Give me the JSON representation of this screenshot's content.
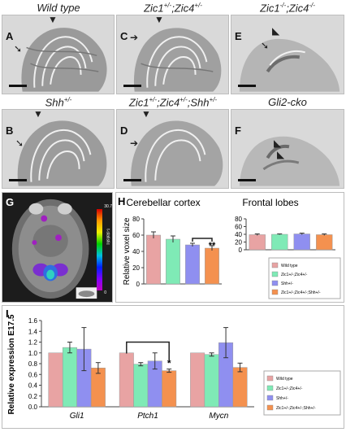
{
  "panels": {
    "A": {
      "letter": "A",
      "title": "Wild type"
    },
    "B": {
      "letter": "B",
      "title_html": "Shh<sup>+/-</sup>",
      "title": "Shh+/-"
    },
    "C": {
      "letter": "C",
      "title": "Zic1+/-;Zic4+/-",
      "title_html": "Zic1<sup>+/-</sup>;Zic4<sup>+/-</sup>"
    },
    "D": {
      "letter": "D",
      "title": "Zic1+/-;Zic4+/-;Shh+/-",
      "title_html": "Zic1<sup>+/-</sup>;Zic4<sup>+/-</sup>;Shh<sup>+/-</sup>"
    },
    "E": {
      "letter": "E",
      "title": "Zic1-/-;Zic4-/-",
      "title_html": "Zic1<sup>-/-</sup>;Zic4<sup>-/-</sup>"
    },
    "F": {
      "letter": "F",
      "title": "Gli2-cko"
    },
    "G": {
      "letter": "G",
      "colorbar_top": "30.7",
      "colorbar_bottom": "0",
      "colorbar_label": "t-statistic"
    }
  },
  "chart_H": {
    "letter": "H",
    "ylabel": "Relative voxel size",
    "panels": [
      "Cerebellar cortex",
      "Frontal lobes"
    ],
    "ylim": [
      0,
      80
    ],
    "yticks": [
      0,
      20,
      40,
      60,
      80
    ],
    "legend": [
      "Wild type",
      "Zic1+/-;Zic4+/-",
      "Shh+/-",
      "Zic1+/-;Zic4+/-;Shh+/-"
    ],
    "significance": "**"
  },
  "chart_I": {
    "letter": "I",
    "ylabel": "Relative expression E17.5",
    "genes": [
      "Gli1",
      "Ptch1",
      "Mycn"
    ],
    "yticks": [
      "0.0",
      "0.2",
      "0.4",
      "0.6",
      "0.8",
      "1.0",
      "1.2",
      "1.4",
      "1.6"
    ],
    "legend": [
      "Wild type",
      "Zic1+/-;Zic4+/-",
      "Shh+/-",
      "Zic1+/-;Zic4+/-;Shh+/-"
    ],
    "significance": "*"
  },
  "chart_data": [
    {
      "type": "bar",
      "title": "Cerebellar cortex",
      "ylabel": "Relative voxel size",
      "ylim": [
        0,
        80
      ],
      "categories": [
        "Wild type",
        "Zic1+/-;Zic4+/-",
        "Shh+/-",
        "Zic1+/-;Zic4+/-;Shh+/-"
      ],
      "values": [
        60,
        55,
        48,
        44
      ],
      "errors": [
        4,
        4,
        2,
        3
      ],
      "colors": [
        "#e8a3a3",
        "#7feab6",
        "#8f8ff0",
        "#f4914f"
      ]
    },
    {
      "type": "bar",
      "title": "Frontal lobes",
      "ylim": [
        0,
        80
      ],
      "categories": [
        "Wild type",
        "Zic1+/-;Zic4+/-",
        "Shh+/-",
        "Zic1+/-;Zic4+/-;Shh+/-"
      ],
      "values": [
        39,
        40,
        41,
        39
      ],
      "errors": [
        2,
        1,
        2,
        2
      ],
      "colors": [
        "#e8a3a3",
        "#7feab6",
        "#8f8ff0",
        "#f4914f"
      ]
    },
    {
      "type": "bar",
      "ylabel": "Relative expression E17.5",
      "ylim": [
        0,
        1.6
      ],
      "categories": [
        "Gli1",
        "Ptch1",
        "Mycn"
      ],
      "series": [
        {
          "name": "Wild type",
          "values": [
            1.0,
            1.0,
            1.0
          ],
          "errors": [
            0,
            0,
            0
          ]
        },
        {
          "name": "Zic1+/-;Zic4+/-",
          "values": [
            1.1,
            0.79,
            0.97
          ],
          "errors": [
            0.1,
            0.03,
            0.03
          ]
        },
        {
          "name": "Shh+/-",
          "values": [
            1.07,
            0.85,
            1.19
          ],
          "errors": [
            0.4,
            0.15,
            0.28
          ]
        },
        {
          "name": "Zic1+/-;Zic4+/-;Shh+/-",
          "values": [
            0.72,
            0.67,
            0.73
          ],
          "errors": [
            0.1,
            0.03,
            0.08
          ]
        }
      ],
      "colors": [
        "#e8a3a3",
        "#7feab6",
        "#8f8ff0",
        "#f4914f"
      ]
    }
  ]
}
